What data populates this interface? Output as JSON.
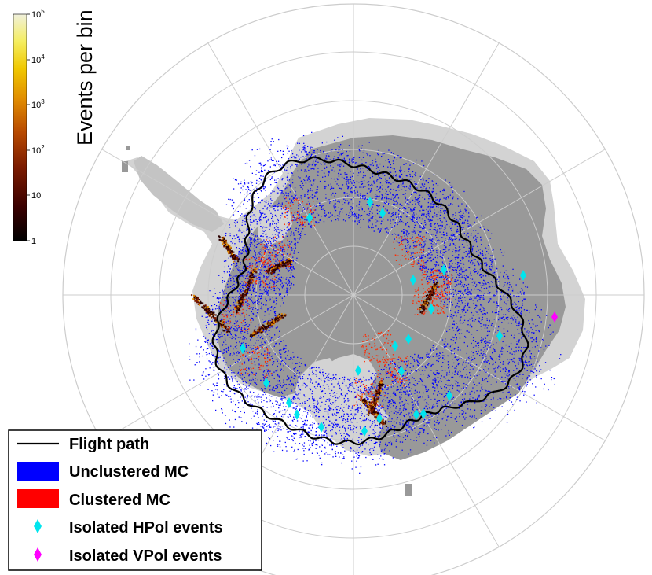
{
  "colorbar": {
    "title": "Events per bin",
    "ticks": [
      {
        "base": "10",
        "exp": "5"
      },
      {
        "base": "10",
        "exp": "4"
      },
      {
        "base": "10",
        "exp": "3"
      },
      {
        "base": "10",
        "exp": "2"
      },
      {
        "base": "10",
        "exp": ""
      },
      {
        "base": "1",
        "exp": ""
      }
    ],
    "scale": "log",
    "range": [
      1,
      100000
    ]
  },
  "legend": {
    "items": [
      {
        "label": "Flight path",
        "symbol": "line",
        "color": "#000000"
      },
      {
        "label": "Unclustered MC",
        "symbol": "box",
        "color": "#0000ff"
      },
      {
        "label": "Clustered MC",
        "symbol": "box",
        "color": "#ff0000"
      },
      {
        "label": "Isolated HPol events",
        "symbol": "diamond",
        "color": "#00e5ee"
      },
      {
        "label": "Isolated VPol events",
        "symbol": "diamond",
        "color": "#ff00ff"
      }
    ]
  },
  "colors": {
    "continent": "#999999",
    "ice_shelf": "#d3d3d3",
    "graticule": "#cccccc",
    "unclustered": "#0000ff",
    "clustered": "#ff0000",
    "hpol": "#00e5ee",
    "vpol": "#ff00ff",
    "flight_path": "#000000"
  }
}
